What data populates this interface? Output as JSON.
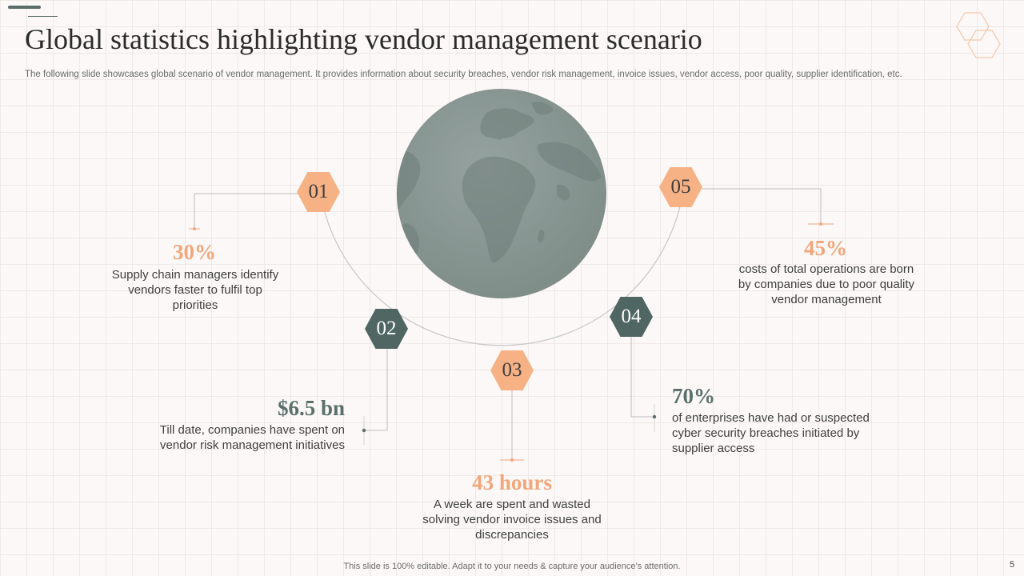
{
  "slide": {
    "title": "Global statistics highlighting vendor management scenario",
    "subtitle": "The following slide showcases global scenario of vendor management. It provides information about security breaches, vendor risk management, invoice issues, vendor access, poor quality, supplier identification, etc.",
    "footer": "This slide is 100% editable. Adapt it to your needs & capture your audience’s attention.",
    "page_number": "5"
  },
  "colors": {
    "accent_orange": "#f6b185",
    "accent_dark": "#4f6662",
    "globe": "#879591"
  },
  "stats": [
    {
      "number": "01",
      "value": "30%",
      "description": "Supply chain managers identify vendors faster to fulfil top priorities"
    },
    {
      "number": "02",
      "value": "$6.5 bn",
      "description": "Till date, companies have spent on vendor risk management initiatives"
    },
    {
      "number": "03",
      "value": "43 hours",
      "description": "A week are spent and wasted solving vendor invoice issues and discrepancies"
    },
    {
      "number": "04",
      "value": "70%",
      "description": "of enterprises have had or suspected cyber security breaches initiated by supplier access"
    },
    {
      "number": "05",
      "value": "45%",
      "description": "costs of total operations are born by companies due to poor quality vendor management"
    }
  ]
}
